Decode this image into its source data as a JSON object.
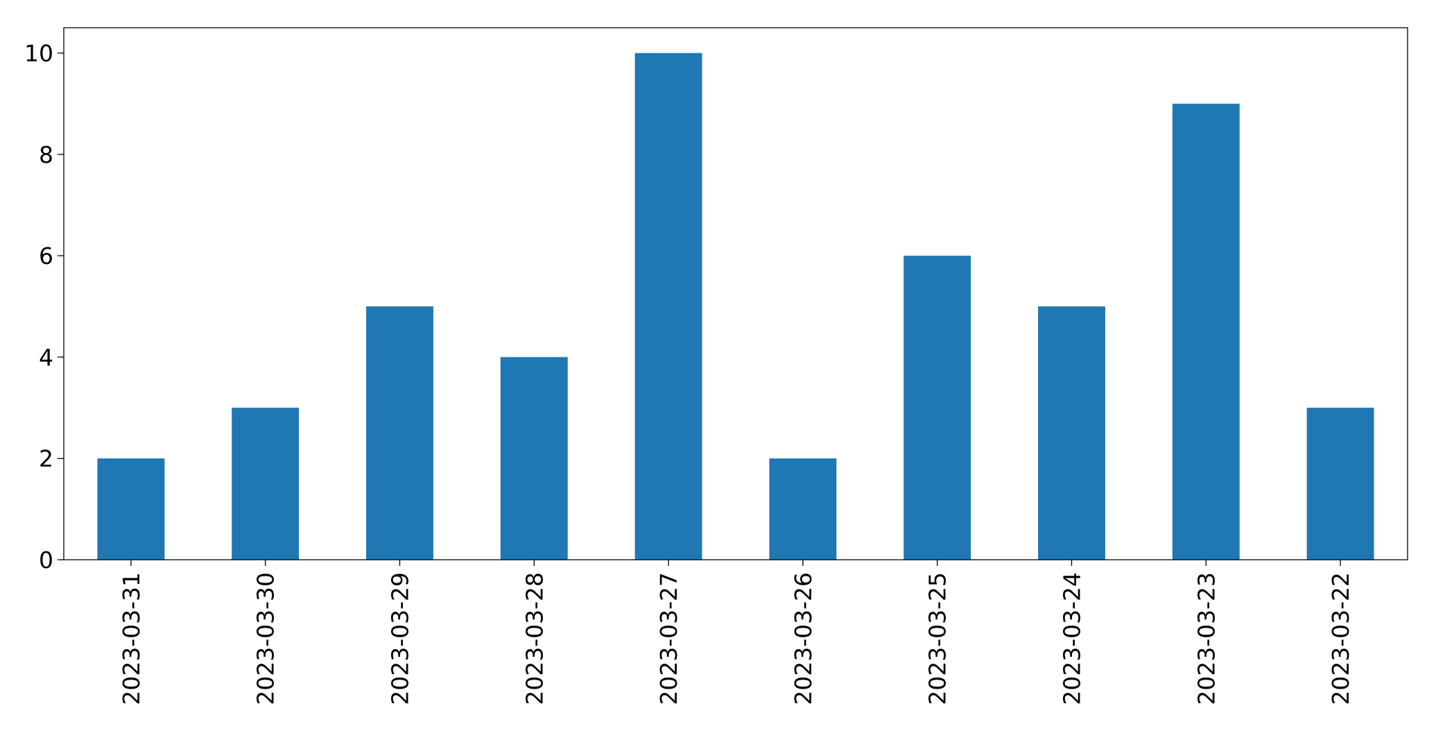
{
  "chart_data": {
    "type": "bar",
    "categories": [
      "2023-03-31",
      "2023-03-30",
      "2023-03-29",
      "2023-03-28",
      "2023-03-27",
      "2023-03-26",
      "2023-03-25",
      "2023-03-24",
      "2023-03-23",
      "2023-03-22"
    ],
    "values": [
      2,
      3,
      5,
      4,
      10,
      2,
      6,
      5,
      9,
      3
    ],
    "color": "#1f77b4",
    "ylim": [
      0,
      10.5
    ],
    "yticks": [
      0,
      2,
      4,
      6,
      8,
      10
    ],
    "grid": false
  }
}
